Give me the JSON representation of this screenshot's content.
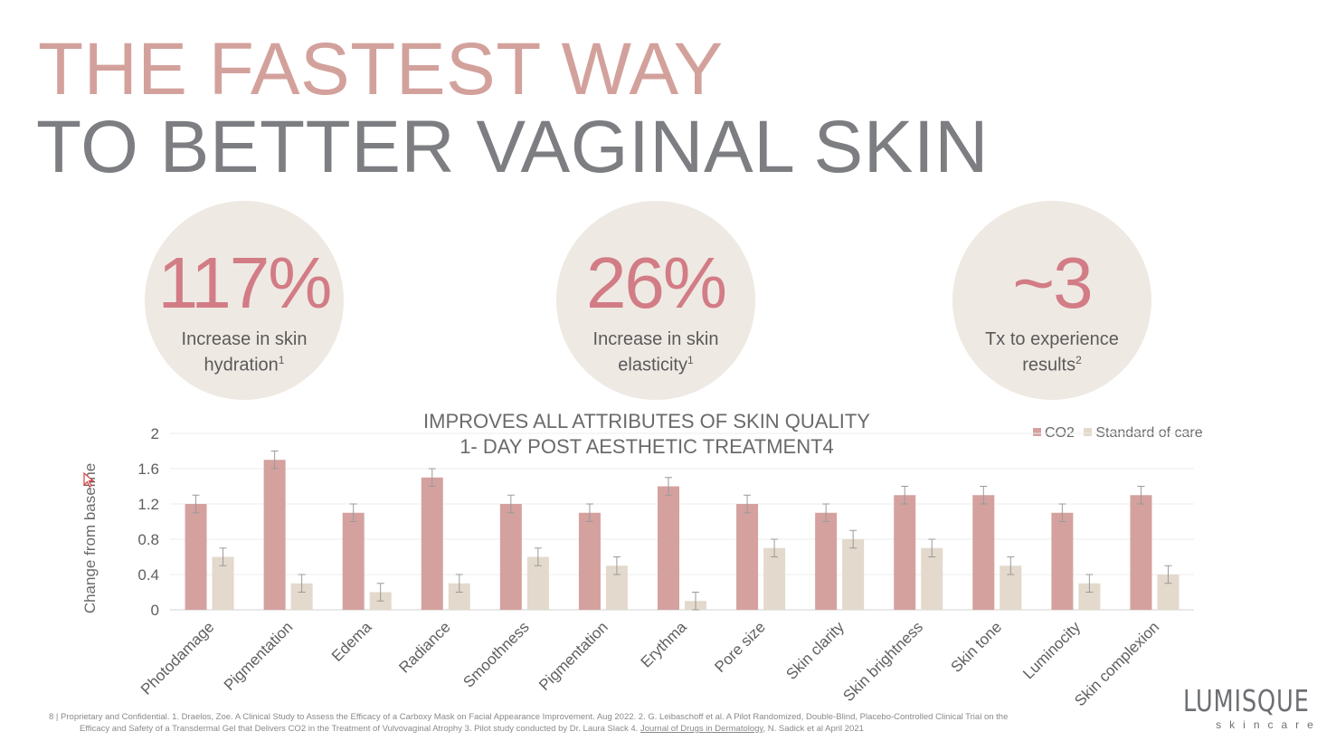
{
  "title": {
    "line1": "THE FASTEST WAY",
    "line2": "TO BETTER VAGINAL SKIN"
  },
  "stats": [
    {
      "value": "117%",
      "label_line1": "Increase in skin",
      "label_line2": "hydration",
      "sup": "1"
    },
    {
      "value": "26%",
      "label_line1": "Increase in skin",
      "label_line2": "elasticity",
      "sup": "1"
    },
    {
      "value": "~3",
      "label_line1": "Tx to experience",
      "label_line2": "results",
      "sup": "2"
    }
  ],
  "colors": {
    "co2": "#d4a19e",
    "standard": "#e3d9cc",
    "title_pink": "#d3a19c",
    "title_gray": "#7d7e82",
    "stat_pink": "#d27c86"
  },
  "chart_data": {
    "type": "bar",
    "title_line1": "IMPROVES ALL ATTRIBUTES OF SKIN QUALITY",
    "title_line2": "1- DAY POST AESTHETIC TREATMENT4",
    "ylabel": "Change from baseline",
    "xlabel": "",
    "ylim": [
      0,
      2
    ],
    "yticks": [
      "0",
      "0.4",
      "0.8",
      "1.2",
      "1.6",
      "2"
    ],
    "grid": true,
    "legend_position": "top-right",
    "categories": [
      "Photodamage",
      "Pigmentation",
      "Edema",
      "Radiance",
      "Smoothness",
      "Pigmentation",
      "Erythma",
      "Pore size",
      "Skin clarity",
      "Skin brightness",
      "Skin tone",
      "Luminocity",
      "Skin complexion"
    ],
    "series": [
      {
        "name": "CO2",
        "values": [
          1.2,
          1.7,
          1.1,
          1.5,
          1.2,
          1.1,
          1.4,
          1.2,
          1.1,
          1.3,
          1.3,
          1.1,
          1.3
        ],
        "error": [
          0.1,
          0.1,
          0.1,
          0.1,
          0.1,
          0.1,
          0.1,
          0.1,
          0.1,
          0.1,
          0.1,
          0.1,
          0.1
        ]
      },
      {
        "name": "Standard of care",
        "values": [
          0.6,
          0.3,
          0.2,
          0.3,
          0.6,
          0.5,
          0.1,
          0.7,
          0.8,
          0.7,
          0.5,
          0.3,
          0.4
        ],
        "error": [
          0.1,
          0.1,
          0.1,
          0.1,
          0.1,
          0.1,
          0.1,
          0.1,
          0.1,
          0.1,
          0.1,
          0.1,
          0.1
        ]
      }
    ]
  },
  "footer": {
    "line1": "8  |  Proprietary and Confidential.   1.  Draelos, Zoe. A Clinical Study to Assess the Efficacy of a Carboxy Mask on Facial Appearance Improvement.  Aug 2022.  2.  G. Leibaschoff et al.  A Pilot Randomized, Double-Blind, Placebo-Controlled Clinical Trial on the",
    "line2_a": "Efficacy and Safety of a Transdermal Gel that Delivers CO2 in the Treatment of Vulvovaginal Atrophy 3. Pilot study conducted by Dr. Laura Slack   4. ",
    "line2_link": "Journal of Drugs in Dermatology",
    "line2_b": ", N. Sadick et al April 2021"
  },
  "logo": {
    "main": "LUMISQUE",
    "sub": "skincare"
  }
}
